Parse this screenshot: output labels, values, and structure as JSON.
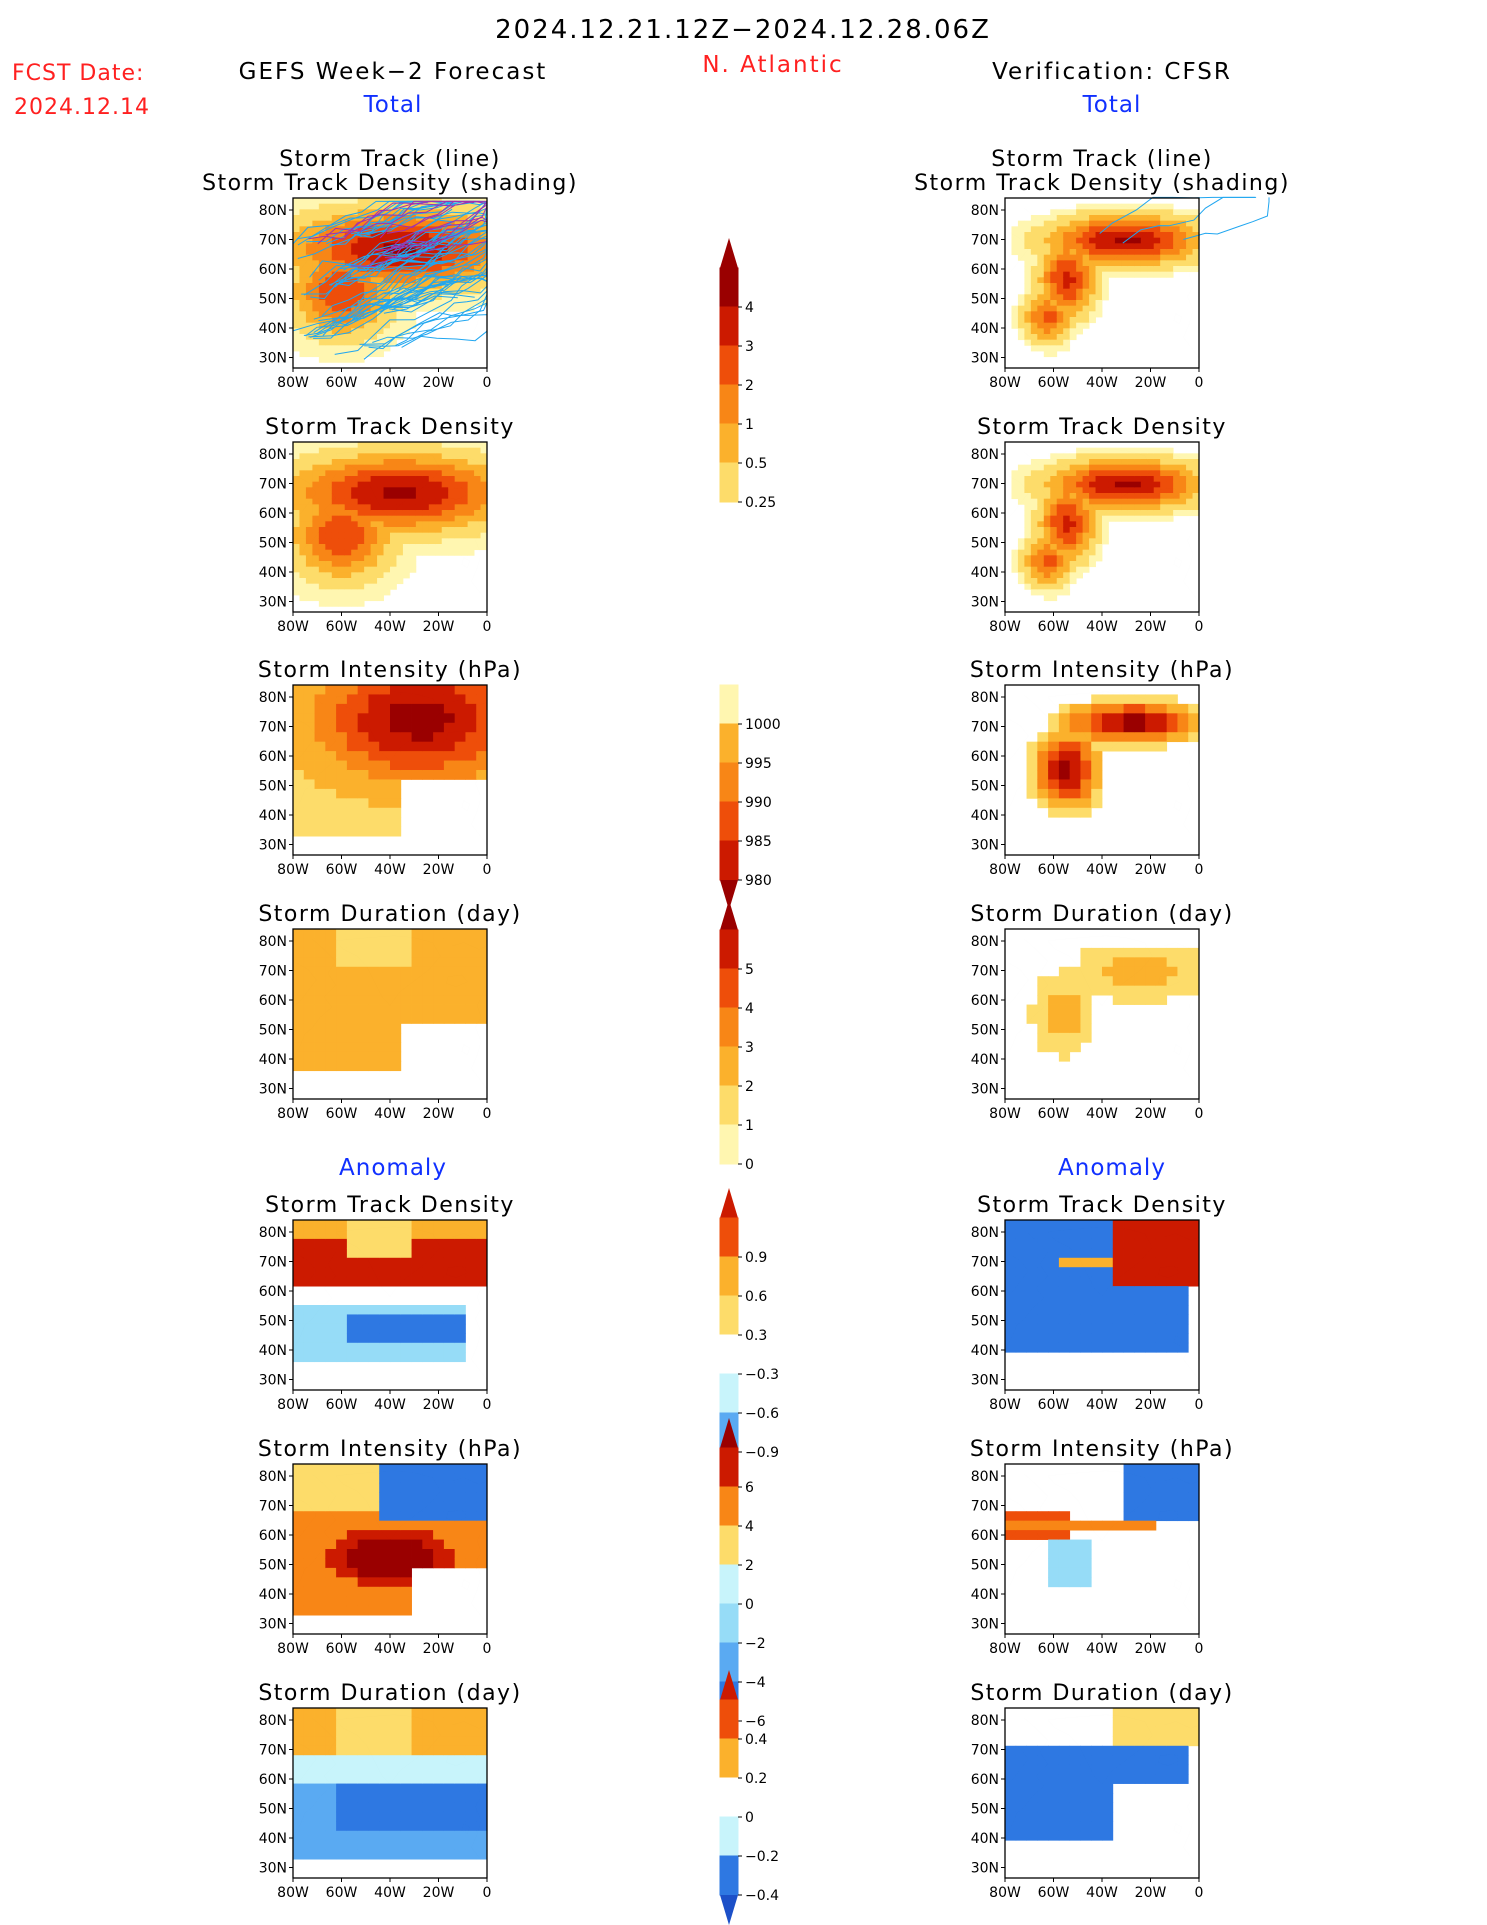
{
  "header": {
    "period": "2024.12.21.12Z−2024.12.28.06Z",
    "region": "N. Atlantic",
    "fcst_label": "FCST Date:",
    "fcst_date": "2024.12.14",
    "left_title": "GEFS Week−2 Forecast",
    "right_title": "Verification: CFSR",
    "total_label": "Total",
    "anomaly_label": "Anomaly"
  },
  "panel_titles": {
    "track_line": "Storm Track (line)",
    "track_shading": "Storm Track Density (shading)",
    "density": "Storm Track Density",
    "intensity": "Storm Intensity (hPa)",
    "duration": "Storm Duration (day)"
  },
  "axes": {
    "lat_ticks": [
      "80N",
      "70N",
      "60N",
      "50N",
      "40N",
      "30N"
    ],
    "lon_ticks": [
      "80W",
      "60W",
      "40W",
      "20W",
      "0"
    ]
  },
  "colorbars": {
    "density_total": [
      "0.25",
      "0.5",
      "1",
      "2",
      "3",
      "4"
    ],
    "intensity_total": [
      "1000",
      "995",
      "990",
      "985",
      "980"
    ],
    "duration_total": [
      "0",
      "1",
      "2",
      "3",
      "4",
      "5"
    ],
    "density_anom": [
      "0.9",
      "0.6",
      "0.3",
      "−0.3",
      "−0.6",
      "−0.9"
    ],
    "intensity_anom": [
      "6",
      "4",
      "2",
      "0",
      "−2",
      "−4",
      "−6"
    ],
    "duration_anom": [
      "0.4",
      "0.2",
      "0",
      "−0.2",
      "−0.4"
    ]
  },
  "colors": {
    "title_red": "#ff2020",
    "title_blue": "#1030ff",
    "warm": [
      "#fff6b0",
      "#fddc6a",
      "#fbb12c",
      "#f88616",
      "#ee4e0a",
      "#cc1a00",
      "#9a0000"
    ],
    "cool": [
      "#c8f4fb",
      "#96dcf7",
      "#5aaaf2",
      "#2e78e2",
      "#1c50c8"
    ],
    "track_line": "#20a6f0",
    "track_mean": "#a030b0"
  }
}
